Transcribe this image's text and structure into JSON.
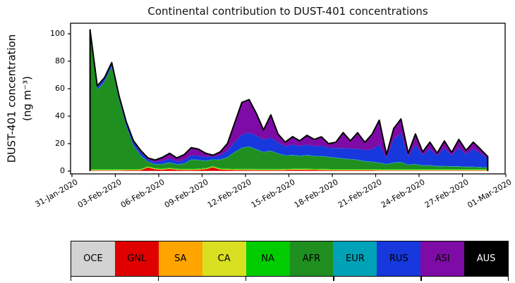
{
  "chart_data": {
    "type": "area",
    "stacked": true,
    "grid": false,
    "title": "Continental contribution to DUST-401 concentrations",
    "ylabel_line1": "DUST-401 concentration",
    "ylabel_line2": "(ng m⁻³)",
    "ylim": [
      0,
      107
    ],
    "yticks": [
      0,
      20,
      40,
      60,
      80,
      100
    ],
    "ytick_labels": [
      "0",
      "20",
      "40",
      "60",
      "80",
      "100"
    ],
    "xtick_labels": [
      "31-Jan-2020",
      "03-Feb-2020",
      "06-Feb-2020",
      "09-Feb-2020",
      "12-Feb-2020",
      "15-Feb-2020",
      "18-Feb-2020",
      "21-Feb-2020",
      "24-Feb-2020",
      "27-Feb-2020",
      "01-Mar-2020"
    ],
    "xtick_days": [
      0,
      3,
      6,
      9,
      12,
      15,
      18,
      21,
      24,
      27,
      30
    ],
    "x_days_since_31jan": [
      1.25,
      1.75,
      2.25,
      2.75,
      3.25,
      3.75,
      4.25,
      4.75,
      5.25,
      5.75,
      6.25,
      6.75,
      7.25,
      7.75,
      8.25,
      8.75,
      9.25,
      9.75,
      10.25,
      10.75,
      11.25,
      11.75,
      12.25,
      12.75,
      13.25,
      13.75,
      14.25,
      14.75,
      15.25,
      15.75,
      16.25,
      16.75,
      17.25,
      17.75,
      18.25,
      18.75,
      19.25,
      19.75,
      20.25,
      20.75,
      21.25,
      21.75,
      22.25,
      22.75,
      23.25,
      23.75,
      24.25,
      24.75,
      25.25,
      25.75,
      26.25,
      26.75,
      27.25,
      27.75,
      28.25,
      28.75
    ],
    "units": "ng m-3",
    "legend_position": "bottom",
    "outline_color": "#000000",
    "series": [
      {
        "name": "OCE",
        "color": "#d3d3d3",
        "label_color": "#000000",
        "constant": 0.1
      },
      {
        "name": "GNL",
        "color": "#e00000",
        "label_color": "#000000",
        "values": [
          0.3,
          0.3,
          0.3,
          0.3,
          0.3,
          0.4,
          0.4,
          0.5,
          2.5,
          1.2,
          0.8,
          1.4,
          0.8,
          0.6,
          0.6,
          0.8,
          1.2,
          2.6,
          1.0,
          0.8,
          0.6,
          0.6,
          0.6,
          0.5,
          0.5,
          0.5,
          0.5,
          0.6,
          0.8,
          0.8,
          0.8,
          0.7,
          0.6,
          0.5,
          0.4,
          0.4,
          0.4,
          0.4,
          0.4,
          0.4,
          0.3,
          0.3,
          0.3,
          0.3,
          0.3,
          0.3,
          0.3,
          0.3,
          0.3,
          0.3,
          0.3,
          0.3,
          0.3,
          0.3,
          0.3,
          0.3
        ]
      },
      {
        "name": "SA",
        "color": "#ffa500",
        "label_color": "#000000",
        "constant": 0.2
      },
      {
        "name": "CA",
        "color": "#d9e021",
        "label_color": "#000000",
        "constant": 0.3
      },
      {
        "name": "NA",
        "color": "#00cc00",
        "label_color": "#000000",
        "constant": 0.5
      },
      {
        "name": "AFR",
        "color": "#1f8f1f",
        "label_color": "#000000",
        "values": [
          98,
          57.5,
          63.5,
          74.5,
          50.5,
          31,
          17,
          9.5,
          3.1,
          2.4,
          3.0,
          3.6,
          2.8,
          3.5,
          6.5,
          6.0,
          5.0,
          4.5,
          6.0,
          8.0,
          12,
          15,
          16,
          14,
          12,
          13,
          11,
          9.5,
          9.5,
          9.0,
          9.5,
          9.0,
          9.0,
          8.5,
          8.0,
          7.5,
          7.0,
          6.5,
          5.5,
          5.0,
          4.5,
          3.5,
          4.5,
          5.0,
          3.0,
          3.5,
          2.5,
          2.5,
          2.0,
          2.0,
          1.8,
          1.8,
          1.5,
          1.5,
          1.2,
          1.0
        ]
      },
      {
        "name": "EUR",
        "color": "#00a2b8",
        "label_color": "#000000",
        "constant": 0.3
      },
      {
        "name": "RUS",
        "color": "#1638dc",
        "label_color": "#000000",
        "values": [
          2.2,
          2.0,
          2.0,
          2.0,
          2.0,
          2.2,
          2.2,
          2.3,
          1.5,
          1.5,
          2.2,
          2.5,
          2.0,
          2.5,
          3.0,
          3.0,
          2.8,
          2.0,
          3.0,
          4.5,
          7,
          9.5,
          10,
          10,
          9,
          9.5,
          8,
          6.5,
          7.5,
          7,
          7.5,
          7,
          7.5,
          6.5,
          7,
          7.5,
          7.5,
          8,
          8,
          9,
          13,
          4.5,
          17,
          21,
          6,
          14,
          7.5,
          12,
          7.5,
          13,
          8,
          13.5,
          9,
          13,
          10,
          6.5
        ]
      },
      {
        "name": "ASI",
        "color": "#7e0ba5",
        "label_color": "#000000",
        "values": [
          1.0,
          0.8,
          0.8,
          0.8,
          0.8,
          1.0,
          1.0,
          1.3,
          1.0,
          1.5,
          2.5,
          4.0,
          2.5,
          3.9,
          5.5,
          4.7,
          2.5,
          1.0,
          2.5,
          5.3,
          14,
          23.5,
          24,
          16,
          7,
          16.5,
          6,
          3,
          5.8,
          3.8,
          6.8,
          4.9,
          6.4,
          3.0,
          4.2,
          11.2,
          5.7,
          11.6,
          5.6,
          11,
          17.8,
          2.2,
          7.8,
          10.2,
          2.2,
          7.8,
          2.2,
          4.8,
          1.8,
          5.2,
          2.0,
          6.0,
          2.8,
          4.8,
          3.0,
          1.3
        ]
      },
      {
        "name": "AUS",
        "color": "#000000",
        "label_color": "#ffffff",
        "constant": 0.05
      }
    ]
  }
}
